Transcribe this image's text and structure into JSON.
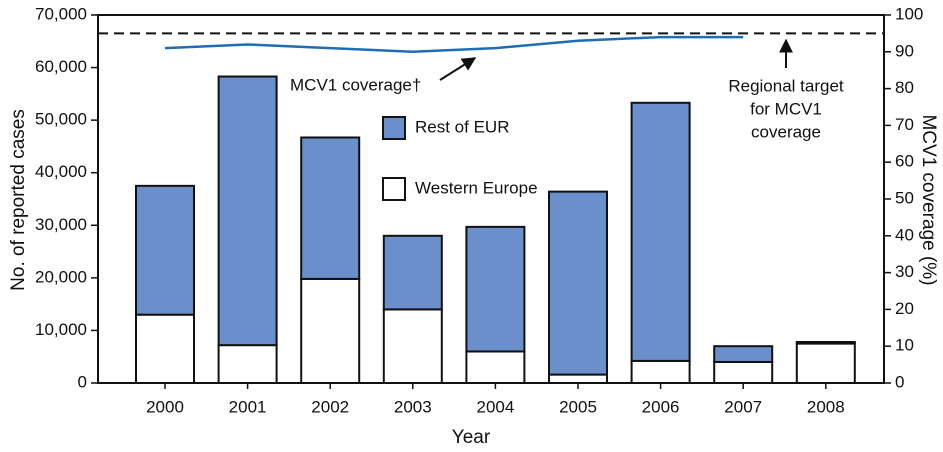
{
  "chart_data": {
    "type": "bar",
    "stacked": true,
    "x_label": "Year",
    "y_label": "No. of reported cases",
    "y2_label": "MCV1 coverage (%)",
    "categories": [
      "2000",
      "2001",
      "2002",
      "2003",
      "2004",
      "2005",
      "2006",
      "2007",
      "2008"
    ],
    "series": [
      {
        "name": "Western Europe",
        "type": "bar",
        "color": "#ffffff",
        "values": [
          13000,
          7200,
          19800,
          14000,
          6000,
          1600,
          4200,
          4000,
          7500
        ]
      },
      {
        "name": "Rest of EUR",
        "type": "bar",
        "color": "#6a8fcb",
        "values": [
          24500,
          51100,
          26900,
          14000,
          23700,
          34800,
          49100,
          3000,
          300
        ]
      },
      {
        "name": "MCV1 coverage†",
        "type": "line",
        "axis": "y2",
        "color": "#1f6db3",
        "values": [
          91,
          92,
          91,
          90,
          91,
          93,
          94,
          94,
          null
        ]
      }
    ],
    "target": 95,
    "target_label": [
      "Regional target",
      "for MCV1",
      "coverage"
    ],
    "ylim": [
      0,
      70000
    ],
    "yticks": [
      0,
      {
        "value": 10000,
        "label": "10,000"
      },
      {
        "value": 20000,
        "label": "20,000"
      },
      {
        "value": 30000,
        "label": "30,000"
      },
      {
        "value": 40000,
        "label": "40,000"
      },
      {
        "value": 50000,
        "label": "50,000"
      },
      {
        "value": 60000,
        "label": "60,000"
      },
      {
        "value": 70000,
        "label": "70,000"
      }
    ],
    "y2lim": [
      0,
      100
    ],
    "y2ticks": [
      0,
      10,
      20,
      30,
      40,
      50,
      60,
      70,
      80,
      90,
      100
    ]
  }
}
